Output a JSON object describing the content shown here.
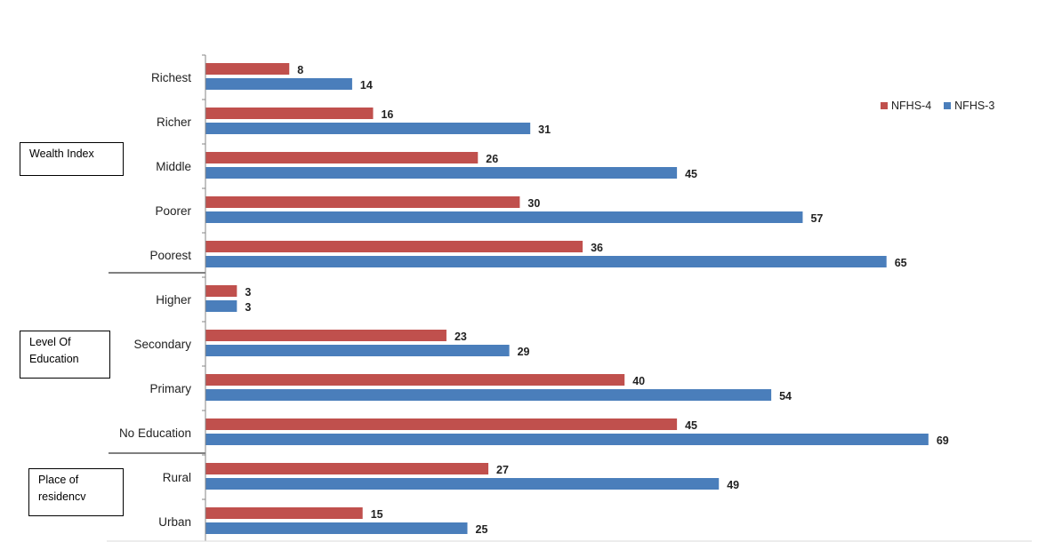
{
  "chart_data": {
    "type": "bar",
    "orientation": "horizontal",
    "categories": [
      "Richest",
      "Richer",
      "Middle",
      "Poorer",
      "Poorest",
      "Higher",
      "Secondary",
      "Primary",
      "No Education",
      "Rural",
      "Urban"
    ],
    "series": [
      {
        "name": "NFHS-4",
        "color": "#c0504d",
        "values": [
          8,
          16,
          26,
          30,
          36,
          3,
          23,
          40,
          45,
          27,
          15
        ]
      },
      {
        "name": "NFHS-3",
        "color": "#4a7ebb",
        "values": [
          14,
          31,
          45,
          57,
          65,
          3,
          29,
          54,
          69,
          49,
          25
        ]
      }
    ],
    "groups": [
      {
        "label": "Wealth Index",
        "categories": [
          "Richest",
          "Richer",
          "Middle",
          "Poorer",
          "Poorest"
        ]
      },
      {
        "label": "Level Of Education",
        "categories": [
          "Higher",
          "Secondary",
          "Primary",
          "No Education"
        ]
      },
      {
        "label": "Place of residencv",
        "categories": [
          "Rural",
          "Urban"
        ]
      }
    ],
    "xlim": [
      0,
      80
    ],
    "grid": false,
    "legend_position": "top-right",
    "data_labels": true,
    "title": "",
    "xlabel": "",
    "ylabel": ""
  },
  "group_boxes": {
    "wealth": "Wealth Index",
    "education_line1": "Level Of",
    "education_line2": "Education",
    "residence_line1": "Place of",
    "residence_line2": "residencv"
  },
  "legend": {
    "nfhs4": "NFHS-4",
    "nfhs3": "NFHS-3"
  }
}
